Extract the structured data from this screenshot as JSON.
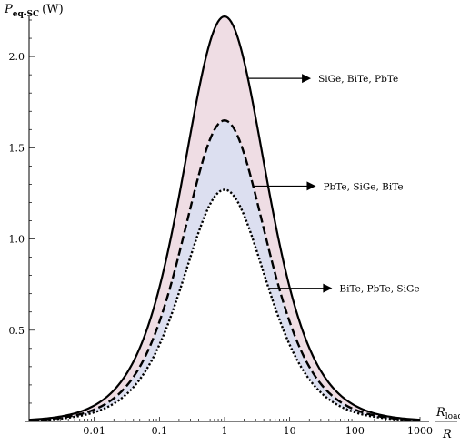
{
  "chart_data": {
    "type": "line",
    "ylabel": "P",
    "ylabel_sub": "eq-SC",
    "ylabel_unit": "(W)",
    "xlabel_num": "R",
    "xlabel_num_sub": "load",
    "xlabel_den": "R",
    "x_scale": "log",
    "xlim": [
      0.001,
      1000
    ],
    "ylim": [
      0,
      2.22
    ],
    "xticks": [
      {
        "value": 0.01,
        "label": "0.01"
      },
      {
        "value": 0.1,
        "label": "0.1"
      },
      {
        "value": 1,
        "label": "1"
      },
      {
        "value": 10,
        "label": "10"
      },
      {
        "value": 100,
        "label": "100"
      },
      {
        "value": 1000,
        "label": "1000"
      }
    ],
    "yticks": [
      {
        "value": 0.5,
        "label": "0.5"
      },
      {
        "value": 1.0,
        "label": "1.0"
      },
      {
        "value": 1.5,
        "label": "1.5"
      },
      {
        "value": 2.0,
        "label": "2.0"
      }
    ],
    "grid": false,
    "series": [
      {
        "style": "solid",
        "peak_x": 1,
        "peak_y": 2.22,
        "annotation": "SiGe, BiTe, PbTe",
        "annotation_at_y": 1.88
      },
      {
        "style": "dashed",
        "peak_x": 1,
        "peak_y": 1.65,
        "annotation": "PbTe, SiGe, BiTe",
        "annotation_at_y": 1.29
      },
      {
        "style": "dotted",
        "peak_x": 1,
        "peak_y": 1.27,
        "annotation": "BiTe, PbTe, SiGe",
        "annotation_at_y": 0.73
      }
    ],
    "fills": [
      {
        "between": [
          0,
          1
        ],
        "color": "#efdde4"
      },
      {
        "between": [
          1,
          2
        ],
        "color": "#dcdff0"
      }
    ]
  }
}
